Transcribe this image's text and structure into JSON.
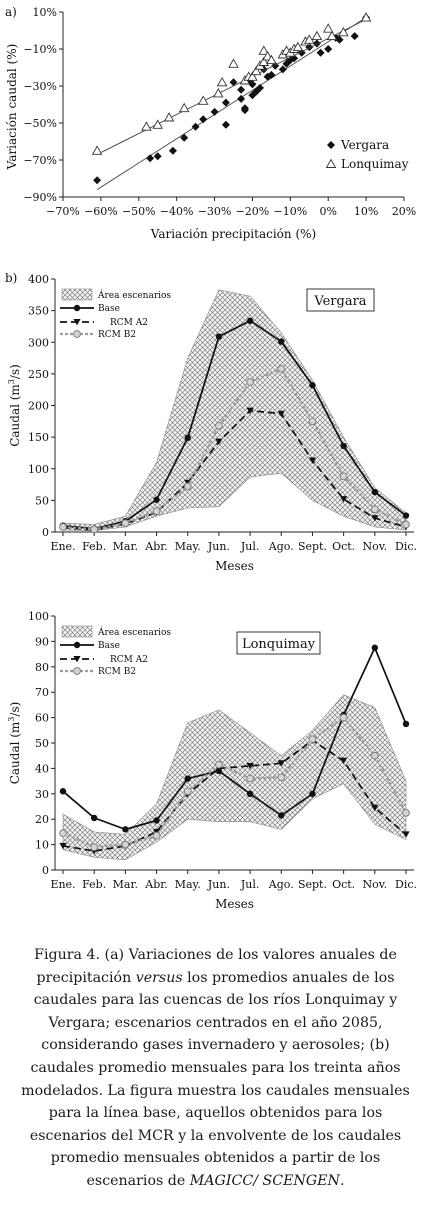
{
  "charts": {
    "a": {
      "panel_label": "a)",
      "chart_data": {
        "type": "scatter",
        "xlabel": "Variación precipitación (%)",
        "ylabel": "Variación caudal (%)",
        "xlim": [
          -70,
          20
        ],
        "ylim": [
          -90,
          10
        ],
        "xticks": [
          "−70%",
          "−60%",
          "−50%",
          "−40%",
          "−30%",
          "−20%",
          "−10%",
          "0%",
          "10%",
          "20%"
        ],
        "yticks": [
          "10%",
          "−10%",
          "−30%",
          "−50%",
          "−70%",
          "−90%"
        ],
        "legend_position": "bottom-right",
        "series": [
          {
            "name": "Vergara",
            "marker": "diamond",
            "points": [
              [
                -61,
                -81
              ],
              [
                -47,
                -69
              ],
              [
                -45,
                -68
              ],
              [
                -41,
                -65
              ],
              [
                -38,
                -58
              ],
              [
                -35,
                -52
              ],
              [
                -33,
                -48
              ],
              [
                -30,
                -44
              ],
              [
                -27,
                -51
              ],
              [
                -27,
                -39
              ],
              [
                -25,
                -28
              ],
              [
                -23,
                -37
              ],
              [
                -23,
                -32
              ],
              [
                -22,
                -43
              ],
              [
                -22,
                -42
              ],
              [
                -21,
                -27
              ],
              [
                -20,
                -35
              ],
              [
                -20,
                -29
              ],
              [
                -19,
                -33
              ],
              [
                -18,
                -31
              ],
              [
                -17,
                -21
              ],
              [
                -16,
                -25
              ],
              [
                -15,
                -24
              ],
              [
                -14,
                -19
              ],
              [
                -12,
                -21
              ],
              [
                -11,
                -18
              ],
              [
                -10,
                -16
              ],
              [
                -9,
                -15
              ],
              [
                -7,
                -12
              ],
              [
                -5,
                -9
              ],
              [
                -3,
                -7
              ],
              [
                -2,
                -12
              ],
              [
                0,
                -10
              ],
              [
                2,
                -4
              ],
              [
                3,
                -5
              ],
              [
                7,
                -3
              ],
              [
                10,
                7
              ]
            ],
            "fit": [
              [
                -61,
                -86
              ],
              [
                10,
                7
              ]
            ]
          },
          {
            "name": "Lonquimay",
            "marker": "triangle",
            "points": [
              [
                -61,
                -65
              ],
              [
                -48,
                -52
              ],
              [
                -45,
                -51
              ],
              [
                -42,
                -47
              ],
              [
                -38,
                -42
              ],
              [
                -33,
                -38
              ],
              [
                -29,
                -34
              ],
              [
                -28,
                -28
              ],
              [
                -25,
                -18
              ],
              [
                -22,
                -27
              ],
              [
                -21,
                -25
              ],
              [
                -20,
                -25
              ],
              [
                -19,
                -22
              ],
              [
                -18,
                -19
              ],
              [
                -17,
                -17
              ],
              [
                -17,
                -11
              ],
              [
                -16,
                -14
              ],
              [
                -15,
                -16
              ],
              [
                -12,
                -13
              ],
              [
                -11,
                -11
              ],
              [
                -10,
                -12
              ],
              [
                -9,
                -10
              ],
              [
                -8,
                -9
              ],
              [
                -6,
                -6
              ],
              [
                -5,
                -5
              ],
              [
                -3,
                -3
              ],
              [
                0,
                1
              ],
              [
                1,
                -3
              ],
              [
                4,
                -1
              ],
              [
                10,
                7
              ]
            ],
            "fit": [
              [
                -61,
                -67
              ],
              [
                10,
                6
              ]
            ]
          }
        ]
      }
    },
    "b1": {
      "panel_label": "b)",
      "chart_data": {
        "type": "line",
        "box_title": "Vergara",
        "xlabel": "Meses",
        "ylabel": "Caudal (m",
        "ylabel_sup": "3",
        "ylabel_end": "/s)",
        "categories": [
          "Ene.",
          "Feb.",
          "Mar.",
          "Abr.",
          "May.",
          "Jun.",
          "Jul.",
          "Ago.",
          "Sept.",
          "Oct.",
          "Nov.",
          "Dic."
        ],
        "ylim": [
          0,
          400
        ],
        "yticks": [
          0,
          50,
          100,
          150,
          200,
          250,
          300,
          350,
          400
        ],
        "legend_position": "top-left",
        "area_name": "Área escenarios",
        "area_upper": [
          14,
          12,
          25,
          110,
          275,
          383,
          373,
          315,
          240,
          150,
          70,
          30
        ],
        "area_lower": [
          3,
          2,
          8,
          25,
          38,
          40,
          87,
          93,
          50,
          25,
          8,
          3
        ],
        "series": [
          {
            "name": "Base",
            "style": "base",
            "values": [
              10,
              5,
              17,
              51,
              149,
              309,
              334,
              301,
              232,
              136,
              63,
              26
            ]
          },
          {
            "name": "RCM A2",
            "style": "a2",
            "values": [
              7,
              3,
              13,
              31,
              78,
              143,
              192,
              187,
              113,
              52,
              22,
              8
            ]
          },
          {
            "name": "RCM B2",
            "style": "b2",
            "values": [
              8,
              4,
              14,
              33,
              72,
              168,
              237,
              258,
              175,
              88,
              36,
              12
            ]
          }
        ]
      }
    },
    "b2": {
      "chart_data": {
        "type": "line",
        "box_title": "Lonquimay",
        "xlabel": "Meses",
        "ylabel": "Caudal (m",
        "ylabel_sup": "3",
        "ylabel_end": "/s)",
        "categories": [
          "Ene.",
          "Feb.",
          "Mar.",
          "Abr.",
          "May.",
          "Jun.",
          "Jul.",
          "Ago.",
          "Sept.",
          "Oct.",
          "Nov.",
          "Dic."
        ],
        "ylim": [
          0,
          100
        ],
        "yticks": [
          0,
          10,
          20,
          30,
          40,
          50,
          60,
          70,
          80,
          90,
          100
        ],
        "legend_position": "top-left",
        "area_name": "Área escenarios",
        "area_upper": [
          22,
          15,
          14,
          26,
          58,
          63,
          54,
          45,
          55,
          69,
          64,
          35
        ],
        "area_lower": [
          8,
          5,
          4,
          11,
          20,
          19,
          19,
          16,
          28,
          34,
          18,
          12
        ],
        "series": [
          {
            "name": "Base",
            "style": "base",
            "values": [
              31,
              20.5,
              16,
              19.5,
              36,
              39,
              30,
              21.5,
              30,
              61,
              87.5,
              57.5
            ]
          },
          {
            "name": "RCM A2",
            "style": "a2",
            "values": [
              9.5,
              7.5,
              9.5,
              15,
              30,
              40,
              41,
              42,
              51,
              43,
              24.5,
              14
            ]
          },
          {
            "name": "RCM B2",
            "style": "b2",
            "values": [
              14.5,
              9,
              10,
              13.5,
              31,
              41.5,
              36,
              36.5,
              51.5,
              60,
              45,
              22.5
            ]
          }
        ]
      }
    }
  },
  "caption": {
    "figure_label": "Figura 4.",
    "text_1": "(a) Variaciones de los valores anuales de precipitación ",
    "versus": "versus",
    "text_2": " los promedios anuales de los caudales para las cuencas de los ríos Lonquimay y Vergara; escenarios centrados en el año 2085, considerando gases invernadero y aerosoles; (b) caudales promedio mensuales para los treinta años modelados. La figura muestra los caudales mensuales para la línea base, aquellos obtenidos para los escenarios del MCR y la envolvente de los caudales promedio mensuales obtenidos a partir de los escenarios de ",
    "magicc": "MAGICC/ SCENGEN",
    "text_3": "."
  }
}
